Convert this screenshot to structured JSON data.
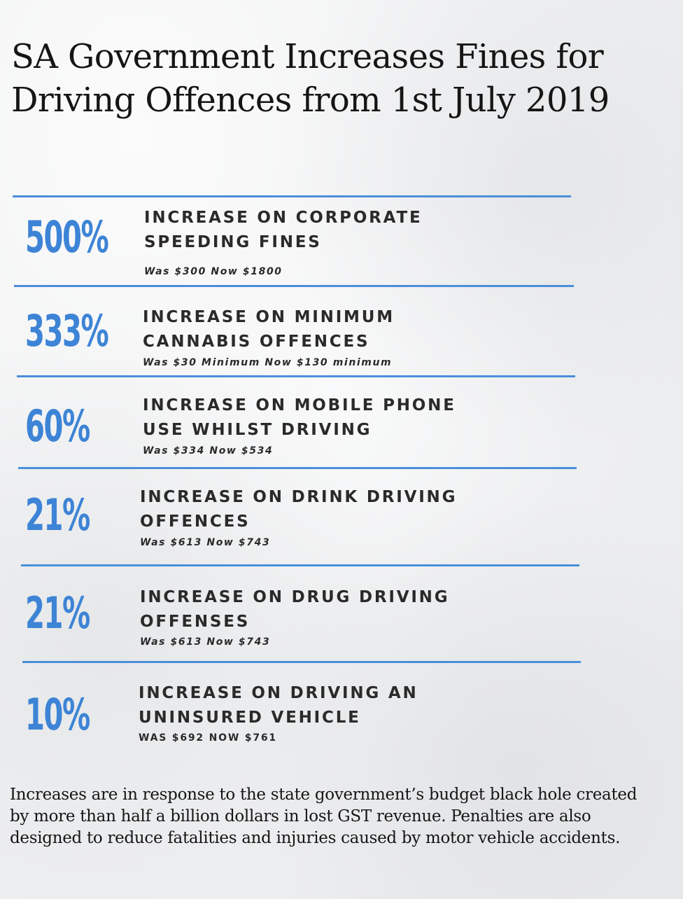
{
  "title_line1": "SA Government Increases Fines for",
  "title_line2": "Driving Offences from 1st July 2019",
  "items": [
    {
      "percent": "500%",
      "heading_line1": "INCREASE ON CORPORATE",
      "heading_line2": "SPEEDING FINES",
      "note": "Was $300 Now $1800"
    },
    {
      "percent": "333%",
      "heading_line1": "INCREASE ON MINIMUM",
      "heading_line2": "CANNABIS OFFENCES",
      "note": "Was $30 Minimum Now $130 minimum"
    },
    {
      "percent": "60%",
      "heading_line1": "INCREASE ON MOBILE PHONE",
      "heading_line2": "USE WHILST DRIVING",
      "note": "Was $334 Now $534"
    },
    {
      "percent": "21%",
      "heading_line1": "INCREASE ON DRINK DRIVING",
      "heading_line2": "OFFENCES",
      "note": "Was $613 Now $743"
    },
    {
      "percent": "21%",
      "heading_line1": "INCREASE ON DRUG DRIVING",
      "heading_line2": "OFFENSES",
      "note": "Was $613 Now $743"
    },
    {
      "percent": "10%",
      "heading_line1": "INCREASE ON DRIVING AN",
      "heading_line2": "UNINSURED VEHICLE",
      "note": "WAS $692 NOW $761"
    }
  ],
  "footer": "Increases are in response to the state government’s budget black hole created by more than half a billion dollars in lost GST revenue. Penalties are also designed to reduce fatalities and injuries caused by motor vehicle accidents.",
  "colors": {
    "accent_blue": "#3d84d6",
    "rule_blue": "#4a8fdc",
    "text_dark": "#2a2a2a",
    "background": "#eeeff1"
  }
}
